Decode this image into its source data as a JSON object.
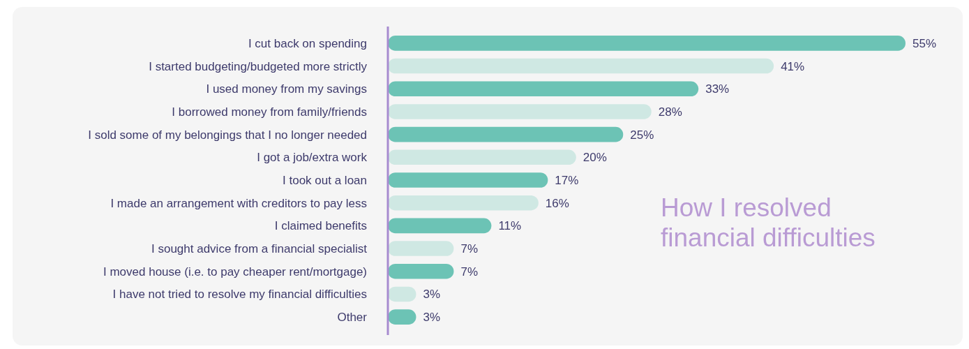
{
  "chart_data": {
    "type": "bar",
    "orientation": "horizontal",
    "title": "How I resolved\nfinancial difficulties",
    "categories": [
      "I cut back on spending",
      "I started budgeting/budgeted more strictly",
      "I used money from my savings",
      "I borrowed money from family/friends",
      "I sold some of my belongings that I no longer needed",
      "I got a job/extra work",
      "I took out a loan",
      "I made an arrangement with creditors to pay less",
      "I claimed benefits",
      "I sought advice from a financial specialist",
      "I moved house (i.e. to pay cheaper rent/mortgage)",
      "I have not tried to resolve my financial difficulties",
      "Other"
    ],
    "values": [
      55,
      41,
      33,
      28,
      25,
      20,
      17,
      16,
      11,
      7,
      7,
      3,
      3
    ],
    "value_labels": [
      "55%",
      "41%",
      "33%",
      "28%",
      "25%",
      "20%",
      "17%",
      "16%",
      "11%",
      "7%",
      "7%",
      "3%",
      "3%"
    ],
    "colors": [
      "#6cc3b5",
      "#cfe8e3",
      "#6cc3b5",
      "#cfe8e3",
      "#6cc3b5",
      "#cfe8e3",
      "#6cc3b5",
      "#cfe8e3",
      "#6cc3b5",
      "#cfe8e3",
      "#6cc3b5",
      "#cfe8e3",
      "#6cc3b5"
    ],
    "xlim": [
      0,
      55
    ]
  }
}
